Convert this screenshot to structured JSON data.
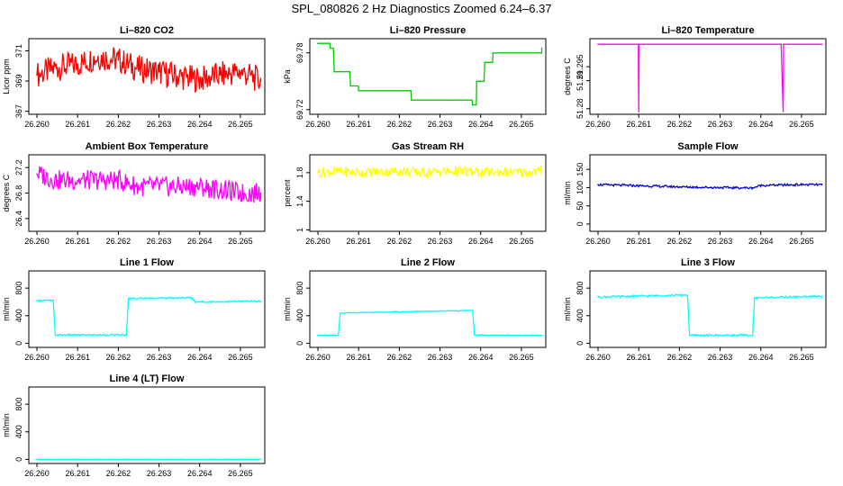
{
  "page": {
    "title": "SPL_080826  2 Hz Diagnostics Zoomed 6.24–6.37"
  },
  "chart_data": [
    {
      "id": "co2",
      "type": "line",
      "title": "Li–820 CO2",
      "ylabel": "Licor ppm",
      "color": "#ff0000",
      "xlim": [
        26.2598,
        26.2656
      ],
      "ylim": [
        366.8,
        371.8
      ],
      "xticks": [
        "26.260",
        "26.261",
        "26.262",
        "26.263",
        "26.264",
        "26.265"
      ],
      "yticks": [
        367,
        369,
        371
      ],
      "x": [
        26.26,
        26.2605,
        26.261,
        26.2615,
        26.262,
        26.2625,
        26.263,
        26.2635,
        26.264,
        26.2645,
        26.265,
        26.2655
      ],
      "y": [
        369.4,
        369.9,
        370.1,
        370.6,
        370.4,
        369.8,
        369.6,
        369.3,
        369.1,
        369.4,
        369.6,
        369.0
      ]
    },
    {
      "id": "pressure",
      "type": "step",
      "title": "Li–820 Pressure",
      "ylabel": "kPa",
      "color": "#00cc00",
      "xlim": [
        26.2598,
        26.2656
      ],
      "ylim": [
        69.715,
        69.795
      ],
      "xticks": [
        "26.260",
        "26.261",
        "26.262",
        "26.263",
        "26.264",
        "26.265"
      ],
      "yticks": [
        69.72,
        69.78
      ],
      "x": [
        26.26,
        26.2603,
        26.2604,
        26.2608,
        26.261,
        26.2622,
        26.2623,
        26.2632,
        26.2638,
        26.2639,
        26.2641,
        26.2643,
        26.2655
      ],
      "y": [
        69.79,
        69.785,
        69.76,
        69.745,
        69.74,
        69.74,
        69.73,
        69.73,
        69.725,
        69.75,
        69.77,
        69.78,
        69.785
      ]
    },
    {
      "id": "temperature",
      "type": "line",
      "title": "Li–820 Temperature",
      "ylabel": "degrees C",
      "color": "#ff00ff",
      "xlim": [
        26.2598,
        26.2656
      ],
      "ylim": [
        51.278,
        51.305
      ],
      "xticks": [
        "26.260",
        "26.261",
        "26.262",
        "26.263",
        "26.264",
        "26.265"
      ],
      "yticks": [
        51.28,
        51.29,
        51.295
      ],
      "x": [
        26.26,
        26.26099,
        26.261,
        26.26101,
        26.2645,
        26.26455,
        26.26456,
        26.2655
      ],
      "y": [
        51.303,
        51.303,
        51.279,
        51.303,
        51.303,
        51.279,
        51.303,
        51.303
      ]
    },
    {
      "id": "box-temp",
      "type": "line",
      "title": "Ambient Box Temperature",
      "ylabel": "degrees C",
      "color": "#ff00ff",
      "xlim": [
        26.2598,
        26.2656
      ],
      "ylim": [
        26.2,
        27.4
      ],
      "xticks": [
        "26.260",
        "26.261",
        "26.262",
        "26.263",
        "26.264",
        "26.265"
      ],
      "yticks": [
        26.4,
        26.8,
        27.2
      ],
      "x": [
        26.26,
        26.2605,
        26.261,
        26.2615,
        26.262,
        26.2625,
        26.263,
        26.2635,
        26.264,
        26.2645,
        26.265,
        26.2655
      ],
      "y": [
        27.1,
        27.0,
        27.0,
        27.0,
        27.0,
        26.9,
        26.9,
        26.9,
        26.9,
        26.85,
        26.8,
        26.8
      ]
    },
    {
      "id": "rh",
      "type": "line",
      "title": "Gas Stream RH",
      "ylabel": "percent",
      "color": "#ffff00",
      "xlim": [
        26.2598,
        26.2656
      ],
      "ylim": [
        0.98,
        2.05
      ],
      "xticks": [
        "26.260",
        "26.261",
        "26.262",
        "26.263",
        "26.264",
        "26.265"
      ],
      "yticks": [
        1.0,
        1.4,
        1.8
      ],
      "x": [
        26.26,
        26.2605,
        26.261,
        26.2615,
        26.262,
        26.2625,
        26.263,
        26.2635,
        26.264,
        26.2645,
        26.265,
        26.2655
      ],
      "y": [
        1.8,
        1.82,
        1.8,
        1.81,
        1.82,
        1.8,
        1.81,
        1.82,
        1.8,
        1.81,
        1.8,
        1.82
      ]
    },
    {
      "id": "sample-flow",
      "type": "line",
      "title": "Sample Flow",
      "ylabel": "ml/min",
      "color": "#0000cc",
      "xlim": [
        26.2598,
        26.2656
      ],
      "ylim": [
        -20,
        190
      ],
      "xticks": [
        "26.260",
        "26.261",
        "26.262",
        "26.263",
        "26.264",
        "26.265"
      ],
      "yticks": [
        0,
        50,
        100,
        150
      ],
      "x": [
        26.26,
        26.261,
        26.262,
        26.263,
        26.2638,
        26.264,
        26.265,
        26.2655
      ],
      "y": [
        108,
        105,
        102,
        100,
        99,
        106,
        108,
        108
      ]
    },
    {
      "id": "line1",
      "type": "line",
      "title": "Line 1 Flow",
      "ylabel": "ml/min",
      "color": "#00ffff",
      "xlim": [
        26.2598,
        26.2656
      ],
      "ylim": [
        -60,
        1050
      ],
      "xticks": [
        "26.260",
        "26.261",
        "26.262",
        "26.263",
        "26.264",
        "26.265"
      ],
      "yticks": [
        0,
        400,
        800
      ],
      "x": [
        26.26,
        26.2604,
        26.26045,
        26.2622,
        26.26225,
        26.2638,
        26.2639,
        26.2655
      ],
      "y": [
        620,
        620,
        120,
        120,
        650,
        660,
        600,
        610
      ]
    },
    {
      "id": "line2",
      "type": "line",
      "title": "Line 2 Flow",
      "ylabel": "ml/min",
      "color": "#00ffff",
      "xlim": [
        26.2598,
        26.2656
      ],
      "ylim": [
        -60,
        1050
      ],
      "xticks": [
        "26.260",
        "26.261",
        "26.262",
        "26.263",
        "26.264",
        "26.265"
      ],
      "yticks": [
        0,
        400,
        800
      ],
      "x": [
        26.26,
        26.2605,
        26.26055,
        26.2638,
        26.26385,
        26.2655
      ],
      "y": [
        115,
        115,
        440,
        475,
        120,
        115
      ]
    },
    {
      "id": "line3",
      "type": "line",
      "title": "Line 3 Flow",
      "ylabel": "ml/min",
      "color": "#00ffff",
      "xlim": [
        26.2598,
        26.2656
      ],
      "ylim": [
        -60,
        1050
      ],
      "xticks": [
        "26.260",
        "26.261",
        "26.262",
        "26.263",
        "26.264",
        "26.265"
      ],
      "yticks": [
        0,
        400,
        800
      ],
      "x": [
        26.26,
        26.2622,
        26.26225,
        26.2638,
        26.26385,
        26.2655
      ],
      "y": [
        670,
        700,
        115,
        115,
        660,
        680
      ]
    },
    {
      "id": "line4",
      "type": "line",
      "title": "Line 4 (LT) Flow",
      "ylabel": "ml/min",
      "color": "#00ffff",
      "xlim": [
        26.2598,
        26.2656
      ],
      "ylim": [
        -60,
        1050
      ],
      "xticks": [
        "26.260",
        "26.261",
        "26.262",
        "26.263",
        "26.264",
        "26.265"
      ],
      "yticks": [
        0,
        400,
        800
      ],
      "x": [
        26.26,
        26.2655
      ],
      "y": [
        0,
        0
      ]
    }
  ]
}
